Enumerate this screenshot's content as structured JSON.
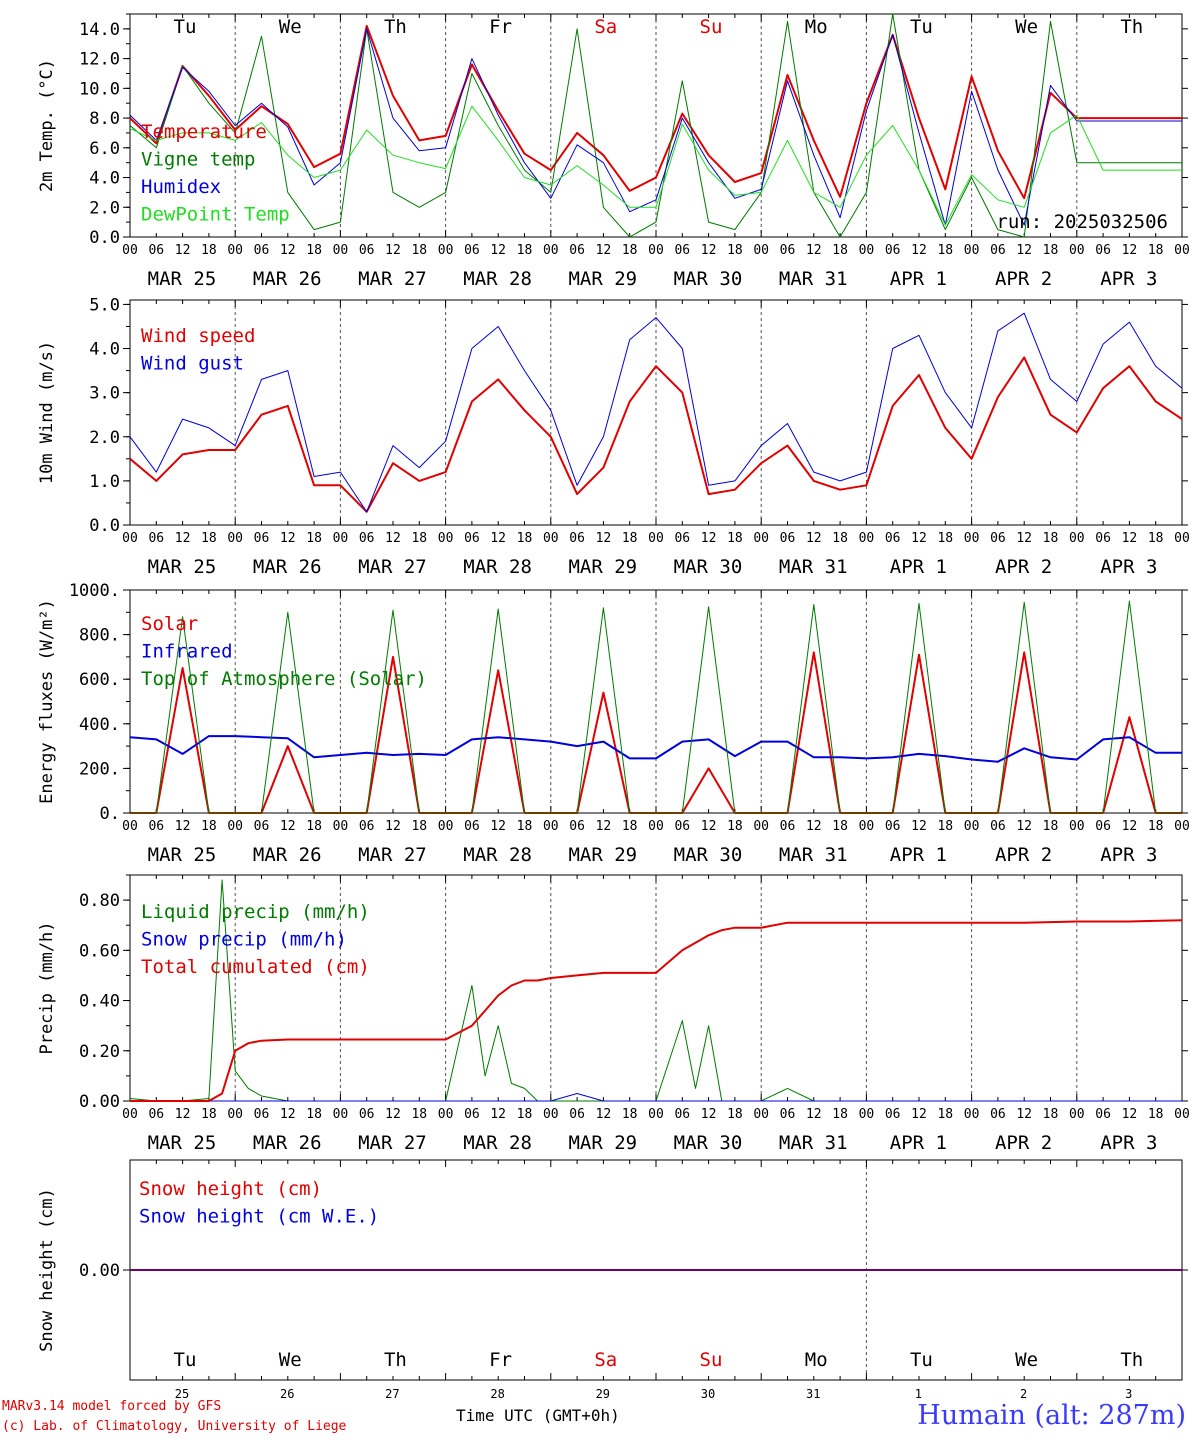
{
  "run_label": "run: 2025032506",
  "footer": {
    "credit_line1": "MARv3.14 model forced by GFS",
    "credit_line2": "(c) Lab. of Climatology, University of Liege",
    "time_axis_label": "Time UTC (GMT+0h)",
    "month_label": "MAR",
    "month_label2": "APR",
    "station": "Humain (alt: 287m)"
  },
  "weekdays": [
    "Tu",
    "We",
    "Th",
    "Fr",
    "Sa",
    "Su",
    "Mo",
    "Tu",
    "We",
    "Th"
  ],
  "weekday_colors": [
    "#000000",
    "#000000",
    "#000000",
    "#000000",
    "#e00000",
    "#e00000",
    "#000000",
    "#000000",
    "#000000",
    "#000000"
  ],
  "dates": [
    "MAR 25",
    "MAR 26",
    "MAR 27",
    "MAR 28",
    "MAR 29",
    "MAR 30",
    "MAR 31",
    "APR  1",
    "APR  2",
    "APR  3"
  ],
  "day_numbers": [
    "25",
    "26",
    "27",
    "28",
    "29",
    "30",
    "31",
    "1",
    "2",
    "3"
  ],
  "hour_ticks": [
    "00",
    "06",
    "12",
    "18"
  ],
  "colors": {
    "red": "#e00000",
    "green": "#007a00",
    "blue": "#0000dd",
    "light_green": "#22dd22"
  },
  "chart_data": [
    {
      "type": "line",
      "ylabel": "2m Temp. (°C)",
      "ylim": [
        0,
        15
      ],
      "yticks": [
        "0.0",
        "2.0",
        "4.0",
        "6.0",
        "8.0",
        "10.0",
        "12.0",
        "14.0"
      ],
      "ytick_values": [
        0,
        2,
        4,
        6,
        8,
        10,
        12,
        14
      ],
      "x_unit": "hours since MAR 25 00 UTC",
      "x": [
        0,
        6,
        12,
        18,
        24,
        30,
        36,
        42,
        48,
        54,
        60,
        66,
        72,
        78,
        84,
        90,
        96,
        102,
        108,
        114,
        120,
        126,
        132,
        138,
        144,
        150,
        156,
        162,
        168,
        174,
        180,
        186,
        192,
        198,
        204,
        210,
        216,
        222,
        228,
        234,
        240
      ],
      "series": [
        {
          "name": "Temperature",
          "color": "#e00000",
          "width": 2,
          "values": [
            8.0,
            6.3,
            11.5,
            9.5,
            7.2,
            8.8,
            7.6,
            4.7,
            5.6,
            14.2,
            9.5,
            6.5,
            6.8,
            11.6,
            8.5,
            5.6,
            4.5,
            7.0,
            5.5,
            3.1,
            4.0,
            8.3,
            5.5,
            3.7,
            4.3,
            10.9,
            6.5,
            2.7,
            9.0,
            13.6,
            8.0,
            3.2,
            10.8,
            5.8,
            2.6,
            9.7,
            8.0,
            8.0,
            8.0,
            8.0,
            8.0
          ]
        },
        {
          "name": "Vigne temp",
          "color": "#007a00",
          "width": 1,
          "values": [
            7.5,
            6.0,
            11.5,
            9.0,
            7.0,
            13.5,
            3.0,
            0.5,
            1.0,
            14.0,
            3.0,
            2.0,
            3.0,
            11.0,
            7.5,
            4.5,
            3.0,
            14.0,
            2.0,
            0.0,
            1.0,
            10.5,
            1.0,
            0.5,
            3.0,
            14.5,
            3.0,
            0.0,
            3.0,
            15.0,
            4.5,
            0.5,
            4.0,
            0.5,
            0.0,
            14.5,
            5.0,
            5.0,
            5.0,
            5.0,
            5.0
          ]
        },
        {
          "name": "Humidex",
          "color": "#0000dd",
          "width": 1,
          "values": [
            8.2,
            6.5,
            11.4,
            9.8,
            7.5,
            9.0,
            7.4,
            3.5,
            5.0,
            14.0,
            8.0,
            5.8,
            6.0,
            12.0,
            8.2,
            5.0,
            2.6,
            6.2,
            5.0,
            1.7,
            2.5,
            8.0,
            5.0,
            2.6,
            3.2,
            10.5,
            5.5,
            1.3,
            8.5,
            13.6,
            7.0,
            0.8,
            9.8,
            4.5,
            0.8,
            10.2,
            7.8,
            7.8,
            7.8,
            7.8,
            7.8
          ]
        },
        {
          "name": "DewPoint Temp",
          "color": "#22dd22",
          "width": 1,
          "values": [
            7.3,
            6.5,
            7.0,
            7.0,
            6.5,
            7.7,
            5.5,
            4.0,
            4.5,
            7.2,
            5.5,
            5.0,
            4.6,
            8.8,
            6.5,
            4.0,
            3.5,
            4.8,
            3.5,
            2.0,
            2.0,
            7.6,
            4.5,
            2.8,
            3.0,
            6.5,
            3.0,
            2.0,
            5.5,
            7.5,
            4.5,
            0.8,
            4.2,
            2.5,
            2.0,
            7.0,
            8.2,
            4.5,
            4.5,
            4.5,
            4.5
          ]
        }
      ]
    },
    {
      "type": "line",
      "ylabel": "10m Wind (m/s)",
      "ylim": [
        0,
        5.1
      ],
      "yticks": [
        "0.0",
        "1.0",
        "2.0",
        "3.0",
        "4.0",
        "5.0"
      ],
      "ytick_values": [
        0,
        1,
        2,
        3,
        4,
        5
      ],
      "x_unit": "hours since MAR 25 00 UTC",
      "x": [
        0,
        6,
        12,
        18,
        24,
        30,
        36,
        42,
        48,
        54,
        60,
        66,
        72,
        78,
        84,
        90,
        96,
        102,
        108,
        114,
        120,
        126,
        132,
        138,
        144,
        150,
        156,
        162,
        168,
        174,
        180,
        186,
        192,
        198,
        204,
        210,
        216,
        222,
        228,
        234,
        240
      ],
      "series": [
        {
          "name": "Wind speed",
          "color": "#e00000",
          "width": 2,
          "values": [
            1.5,
            1.0,
            1.6,
            1.7,
            1.7,
            2.5,
            2.7,
            0.9,
            0.9,
            0.3,
            1.4,
            1.0,
            1.2,
            2.8,
            3.3,
            2.6,
            2.0,
            0.7,
            1.3,
            2.8,
            3.6,
            3.0,
            0.7,
            0.8,
            1.4,
            1.8,
            1.0,
            0.8,
            0.9,
            2.7,
            3.4,
            2.2,
            1.5,
            2.9,
            3.8,
            2.5,
            2.1,
            3.1,
            3.6,
            2.8,
            2.4
          ]
        },
        {
          "name": "Wind gust",
          "color": "#0000dd",
          "width": 1,
          "values": [
            2.0,
            1.2,
            2.4,
            2.2,
            1.8,
            3.3,
            3.5,
            1.1,
            1.2,
            0.3,
            1.8,
            1.3,
            1.9,
            4.0,
            4.5,
            3.5,
            2.6,
            0.9,
            2.0,
            4.2,
            4.7,
            4.0,
            0.9,
            1.0,
            1.8,
            2.3,
            1.2,
            1.0,
            1.2,
            4.0,
            4.3,
            3.0,
            2.2,
            4.4,
            4.8,
            3.3,
            2.8,
            4.1,
            4.6,
            3.6,
            3.1
          ]
        }
      ]
    },
    {
      "type": "line",
      "ylabel": "Energy fluxes (W/m²)",
      "ylim": [
        0,
        1000
      ],
      "yticks": [
        "0.",
        "200.",
        "400.",
        "600.",
        "800.",
        "1000."
      ],
      "ytick_values": [
        0,
        200,
        400,
        600,
        800,
        1000
      ],
      "x_unit": "hours since MAR 25 00 UTC",
      "x": [
        0,
        6,
        12,
        18,
        24,
        30,
        36,
        42,
        48,
        54,
        60,
        66,
        72,
        78,
        84,
        90,
        96,
        102,
        108,
        114,
        120,
        126,
        132,
        138,
        144,
        150,
        156,
        162,
        168,
        174,
        180,
        186,
        192,
        198,
        204,
        210,
        216,
        222,
        228,
        234,
        240
      ],
      "series": [
        {
          "name": "Solar",
          "color": "#e00000",
          "width": 2,
          "values": [
            0,
            0,
            650,
            0,
            0,
            0,
            300,
            0,
            0,
            0,
            700,
            0,
            0,
            0,
            640,
            0,
            0,
            0,
            540,
            0,
            0,
            0,
            200,
            0,
            0,
            0,
            720,
            0,
            0,
            0,
            710,
            0,
            0,
            0,
            720,
            0,
            0,
            0,
            430,
            0,
            0
          ]
        },
        {
          "name": "Infrared",
          "color": "#0000dd",
          "width": 2,
          "values": [
            340,
            330,
            265,
            345,
            345,
            340,
            335,
            250,
            260,
            270,
            260,
            265,
            260,
            330,
            340,
            330,
            320,
            300,
            320,
            245,
            245,
            320,
            330,
            255,
            320,
            320,
            250,
            250,
            245,
            250,
            265,
            255,
            240,
            230,
            290,
            250,
            240,
            330,
            340,
            270,
            270
          ]
        },
        {
          "name": "Top of Atmosphere (Solar)",
          "color": "#007a00",
          "width": 1,
          "values": [
            0,
            0,
            880,
            0,
            0,
            0,
            900,
            0,
            0,
            0,
            910,
            0,
            0,
            0,
            915,
            0,
            0,
            0,
            920,
            0,
            0,
            0,
            925,
            0,
            0,
            0,
            935,
            0,
            0,
            0,
            940,
            0,
            0,
            0,
            945,
            0,
            0,
            0,
            950,
            0,
            0
          ]
        }
      ]
    },
    {
      "type": "line",
      "ylabel": "Precip (mm/h)",
      "ylim": [
        0,
        0.9
      ],
      "yticks": [
        "0.00",
        "0.20",
        "0.40",
        "0.60",
        "0.80"
      ],
      "ytick_values": [
        0,
        0.2,
        0.4,
        0.6,
        0.8
      ],
      "x_unit": "hours since MAR 25 00 UTC",
      "x": [
        0,
        6,
        12,
        18,
        21,
        24,
        27,
        30,
        36,
        42,
        48,
        54,
        60,
        66,
        72,
        78,
        81,
        84,
        87,
        90,
        93,
        96,
        102,
        108,
        114,
        120,
        126,
        129,
        132,
        135,
        138,
        144,
        150,
        156,
        162,
        168,
        180,
        192,
        204,
        216,
        228,
        240
      ],
      "series": [
        {
          "name": "Liquid precip (mm/h)",
          "color": "#007a00",
          "width": 1,
          "values": [
            0.01,
            0.0,
            0.0,
            0.01,
            0.88,
            0.12,
            0.05,
            0.02,
            0.0,
            0.0,
            0.0,
            0.0,
            0.0,
            0.0,
            0.0,
            0.46,
            0.1,
            0.3,
            0.07,
            0.05,
            0.0,
            0.0,
            0.0,
            0.0,
            0.0,
            0.0,
            0.32,
            0.05,
            0.3,
            0.0,
            0.0,
            0.0,
            0.05,
            0.0,
            0.0,
            0.0,
            0.0,
            0.0,
            0.0,
            0.0,
            0.0,
            0.0
          ]
        },
        {
          "name": "Snow precip (mm/h)",
          "color": "#0000dd",
          "width": 1,
          "values": [
            0.0,
            0.0,
            0.0,
            0.0,
            0.0,
            0.0,
            0.0,
            0.0,
            0.0,
            0.0,
            0.0,
            0.0,
            0.0,
            0.0,
            0.0,
            0.0,
            0.0,
            0.0,
            0.0,
            0.0,
            0.0,
            0.0,
            0.03,
            0.0,
            0.0,
            0.0,
            0.0,
            0.0,
            0.0,
            0.0,
            0.0,
            0.0,
            0.0,
            0.0,
            0.0,
            0.0,
            0.0,
            0.0,
            0.0,
            0.0,
            0.0,
            0.0
          ]
        },
        {
          "name": "Total cumulated (cm)",
          "color": "#e00000",
          "width": 2,
          "values": [
            0.0,
            0.0,
            0.0,
            0.0,
            0.03,
            0.2,
            0.23,
            0.24,
            0.245,
            0.245,
            0.245,
            0.245,
            0.245,
            0.245,
            0.245,
            0.3,
            0.36,
            0.42,
            0.46,
            0.48,
            0.48,
            0.49,
            0.5,
            0.51,
            0.51,
            0.51,
            0.6,
            0.63,
            0.66,
            0.68,
            0.69,
            0.69,
            0.71,
            0.71,
            0.71,
            0.71,
            0.71,
            0.71,
            0.71,
            0.715,
            0.715,
            0.72
          ]
        }
      ]
    },
    {
      "type": "line",
      "ylabel": "Snow height (cm)",
      "ylim": [
        -1,
        1
      ],
      "yticks": [
        "0.00"
      ],
      "ytick_values": [
        0
      ],
      "x_unit": "hours since MAR 25 00 UTC",
      "x": [
        0,
        240
      ],
      "series": [
        {
          "name": "Snow height (cm)",
          "color": "#e00000",
          "width": 2,
          "values": [
            0,
            0
          ]
        },
        {
          "name": "Snow height (cm W.E.)",
          "color": "#0000dd",
          "width": 1,
          "values": [
            0,
            0
          ]
        }
      ]
    }
  ]
}
